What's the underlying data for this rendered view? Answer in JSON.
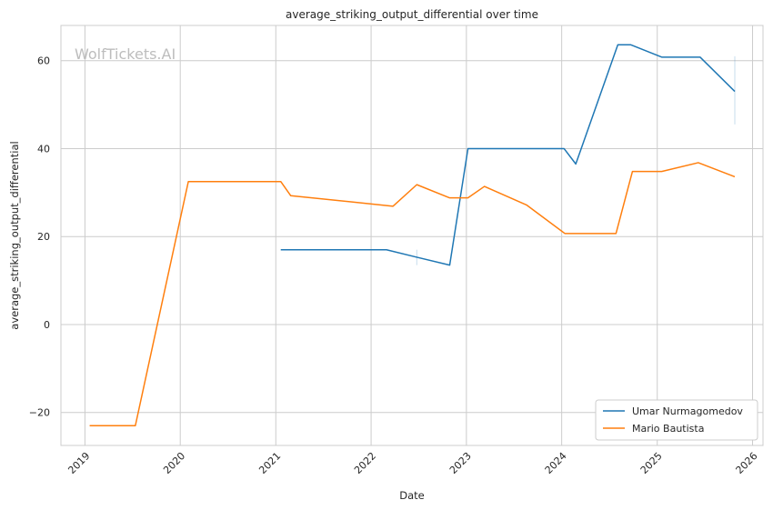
{
  "chart_data": {
    "type": "line",
    "title": "average_striking_output_differential over time",
    "xlabel": "Date",
    "ylabel": "average_striking_output_differential",
    "watermark": "WolfTickets.AI",
    "xlim": [
      "2018-10-01",
      "2026-02-10"
    ],
    "ylim": [
      -27.5,
      68
    ],
    "x_ticks": [
      "2019",
      "2020",
      "2021",
      "2022",
      "2023",
      "2024",
      "2025",
      "2026"
    ],
    "y_ticks": [
      -20,
      0,
      20,
      40,
      60
    ],
    "grid": true,
    "legend_position": "lower right",
    "series": [
      {
        "name": "Umar Nurmagomedov",
        "color": "#1f77b4",
        "points": [
          [
            "2021-01-20",
            17.0
          ],
          [
            "2022-03-01",
            17.0
          ],
          [
            "2022-06-25",
            15.3
          ],
          [
            "2022-10-29",
            13.5
          ],
          [
            "2023-01-07",
            40.0
          ],
          [
            "2024-01-10",
            40.0
          ],
          [
            "2024-02-24",
            36.5
          ],
          [
            "2024-08-03",
            63.6
          ],
          [
            "2024-09-22",
            63.6
          ],
          [
            "2025-01-18",
            60.8
          ],
          [
            "2025-06-14",
            60.8
          ],
          [
            "2025-10-25",
            53.0
          ]
        ],
        "error_bars": [
          {
            "x": "2022-06-25",
            "low": 13.5,
            "high": 17.0
          },
          {
            "x": "2025-10-25",
            "low": 45.5,
            "high": 61.0
          }
        ]
      },
      {
        "name": "Mario Bautista",
        "color": "#ff7f0e",
        "points": [
          [
            "2019-01-19",
            -23.0
          ],
          [
            "2019-07-13",
            -23.0
          ],
          [
            "2020-02-01",
            32.5
          ],
          [
            "2021-01-20",
            32.5
          ],
          [
            "2021-02-27",
            29.3
          ],
          [
            "2022-03-26",
            26.9
          ],
          [
            "2022-06-25",
            31.8
          ],
          [
            "2022-10-29",
            28.8
          ],
          [
            "2023-01-07",
            28.8
          ],
          [
            "2023-03-11",
            31.4
          ],
          [
            "2023-08-19",
            27.2
          ],
          [
            "2024-01-13",
            20.7
          ],
          [
            "2024-07-27",
            20.7
          ],
          [
            "2024-09-28",
            34.8
          ],
          [
            "2025-01-18",
            34.8
          ],
          [
            "2025-06-07",
            36.8
          ],
          [
            "2025-10-25",
            33.6
          ]
        ]
      }
    ]
  }
}
